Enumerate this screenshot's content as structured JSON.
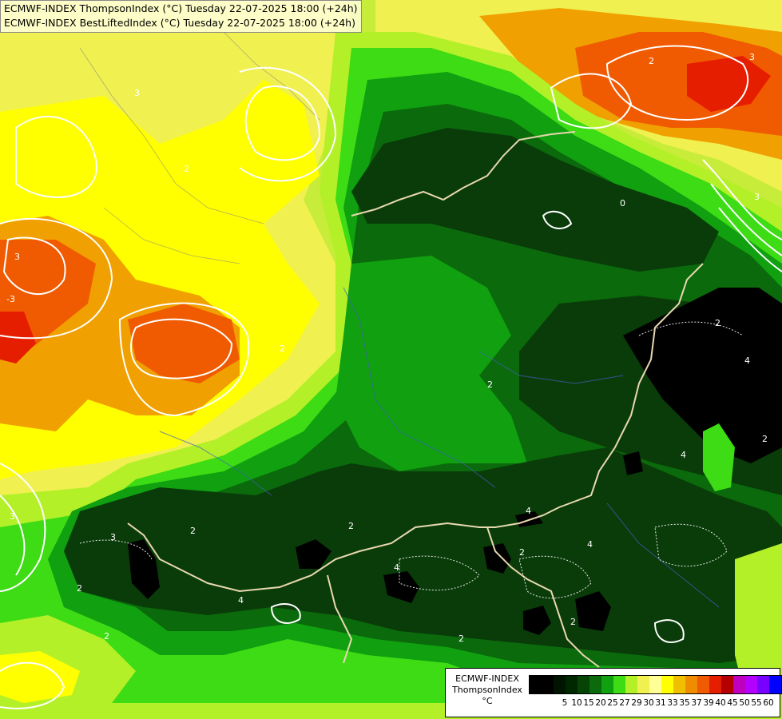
{
  "titles": {
    "line1": "ECMWF-INDEX ThompsonIndex (°C) Tuesday 22-07-2025 18:00 (+24h)",
    "line2": "ECMWF-INDEX BestLiftedIndex (°C) Tuesday 22-07-2025 18:00 (+24h)"
  },
  "legend": {
    "line1": "ECMWF-INDEX",
    "line2": "ThompsonIndex",
    "line3": "°C",
    "swatches": [
      "#000000",
      "#000000",
      "#001400",
      "#002800",
      "#064406",
      "#0b6a0b",
      "#10a010",
      "#3ddc14",
      "#b4f028",
      "#f0f050",
      "#ffff96",
      "#ffff00",
      "#f0c000",
      "#f08c00",
      "#f05a00",
      "#e61e00",
      "#b40000",
      "#be00be",
      "#b400ff",
      "#7800ff",
      "#0000ff"
    ],
    "ticks": [
      "5",
      "10",
      "15",
      "20",
      "25",
      "27",
      "29",
      "30",
      "31",
      "33",
      "35",
      "37",
      "39",
      "40",
      "45",
      "50",
      "55",
      "60"
    ]
  },
  "contour_labels": [
    "3",
    "2",
    "3",
    "-3",
    "2",
    "3",
    "2",
    "0",
    "3",
    "4",
    "3",
    "3",
    "2",
    "2",
    "4",
    "4",
    "2",
    "4",
    "2",
    "4",
    "2",
    "2",
    "4",
    "2",
    "2",
    "2",
    "2"
  ],
  "colors": {
    "black": "#000000",
    "dark_green": "#0a3c0a",
    "forest_green": "#0b6a0b",
    "green": "#10a010",
    "bright_green": "#3ddc14",
    "lime": "#b4f028",
    "pale_yellow": "#f0f050",
    "yellow": "#ffff00",
    "orange": "#f0a000",
    "red_orange": "#f05a00",
    "red": "#e61e00"
  }
}
